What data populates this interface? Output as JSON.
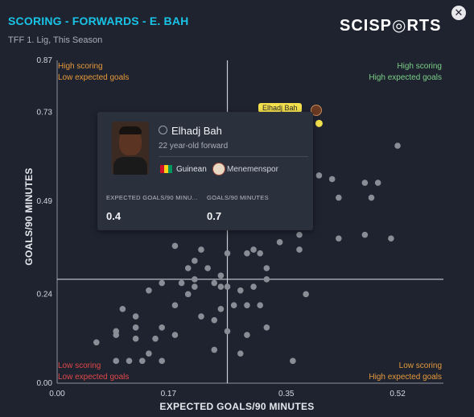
{
  "header": {
    "title": "SCORING - FORWARDS - E. BAH",
    "subtitle": "TFF 1. Lig, This Season",
    "logo": "SCISP◎RTS",
    "close_symbol": "✕"
  },
  "chart_data": {
    "type": "scatter",
    "xlabel": "EXPECTED GOALS/90 MINUTES",
    "ylabel": "GOALS/90 MINUTES",
    "xlim": [
      0,
      0.59
    ],
    "ylim": [
      0,
      0.87
    ],
    "x_ticks": [
      0,
      0.17,
      0.35,
      0.52
    ],
    "x_tick_labels": [
      "0.00",
      "0.17",
      "0.35",
      "0.52"
    ],
    "y_ticks": [
      0,
      0.24,
      0.49,
      0.73,
      0.87
    ],
    "y_tick_labels": [
      "0.00",
      "0.24",
      "0.49",
      "0.73",
      "0.87"
    ],
    "x_ref": 0.26,
    "y_ref": 0.28,
    "quadrants": {
      "top_left": [
        "High scoring",
        "Low expected goals"
      ],
      "top_right": [
        "High scoring",
        "High expected goals"
      ],
      "bottom_left": [
        "Low scoring",
        "Low expected goals"
      ],
      "bottom_right": [
        "Low scoring",
        "High expected goals"
      ]
    },
    "colors": {
      "point": "#8a8d95",
      "ref_line": "#c9ccd4",
      "quad_orange": "#e69a3a",
      "quad_green": "#7bcf86",
      "quad_red": "#e04848"
    },
    "highlight": {
      "name": "Elhadj Bah",
      "x": 0.4,
      "y": 0.7
    },
    "points": [
      [
        0.52,
        0.64
      ],
      [
        0.42,
        0.55
      ],
      [
        0.4,
        0.56
      ],
      [
        0.43,
        0.5
      ],
      [
        0.48,
        0.5
      ],
      [
        0.47,
        0.54
      ],
      [
        0.49,
        0.54
      ],
      [
        0.51,
        0.39
      ],
      [
        0.47,
        0.4
      ],
      [
        0.43,
        0.39
      ],
      [
        0.37,
        0.4
      ],
      [
        0.34,
        0.38
      ],
      [
        0.3,
        0.36
      ],
      [
        0.29,
        0.35
      ],
      [
        0.31,
        0.35
      ],
      [
        0.26,
        0.35
      ],
      [
        0.37,
        0.36
      ],
      [
        0.18,
        0.37
      ],
      [
        0.22,
        0.36
      ],
      [
        0.21,
        0.33
      ],
      [
        0.2,
        0.31
      ],
      [
        0.23,
        0.31
      ],
      [
        0.25,
        0.29
      ],
      [
        0.32,
        0.31
      ],
      [
        0.32,
        0.28
      ],
      [
        0.3,
        0.26
      ],
      [
        0.28,
        0.25
      ],
      [
        0.26,
        0.26
      ],
      [
        0.24,
        0.27
      ],
      [
        0.25,
        0.26
      ],
      [
        0.16,
        0.27
      ],
      [
        0.19,
        0.27
      ],
      [
        0.21,
        0.28
      ],
      [
        0.21,
        0.26
      ],
      [
        0.2,
        0.24
      ],
      [
        0.14,
        0.25
      ],
      [
        0.27,
        0.21
      ],
      [
        0.25,
        0.2
      ],
      [
        0.29,
        0.21
      ],
      [
        0.31,
        0.21
      ],
      [
        0.38,
        0.24
      ],
      [
        0.18,
        0.21
      ],
      [
        0.22,
        0.18
      ],
      [
        0.24,
        0.17
      ],
      [
        0.1,
        0.2
      ],
      [
        0.12,
        0.18
      ],
      [
        0.09,
        0.14
      ],
      [
        0.12,
        0.15
      ],
      [
        0.16,
        0.15
      ],
      [
        0.18,
        0.13
      ],
      [
        0.26,
        0.14
      ],
      [
        0.29,
        0.13
      ],
      [
        0.32,
        0.15
      ],
      [
        0.06,
        0.11
      ],
      [
        0.09,
        0.13
      ],
      [
        0.12,
        0.12
      ],
      [
        0.15,
        0.12
      ],
      [
        0.11,
        0.06
      ],
      [
        0.09,
        0.06
      ],
      [
        0.13,
        0.06
      ],
      [
        0.16,
        0.06
      ],
      [
        0.14,
        0.08
      ],
      [
        0.24,
        0.09
      ],
      [
        0.28,
        0.08
      ],
      [
        0.36,
        0.06
      ]
    ]
  },
  "tooltip": {
    "name": "Elhadj Bah",
    "description": "22 year-old forward",
    "nationality": "Guinean",
    "club": "Menemenspor",
    "stat1_label": "EXPECTED GOALS/90 MINU...",
    "stat1_value": "0.4",
    "stat2_label": "GOALS/90 MINUTES",
    "stat2_value": "0.7",
    "flag_colors": [
      "#ce1126",
      "#fcd116",
      "#009460"
    ]
  }
}
